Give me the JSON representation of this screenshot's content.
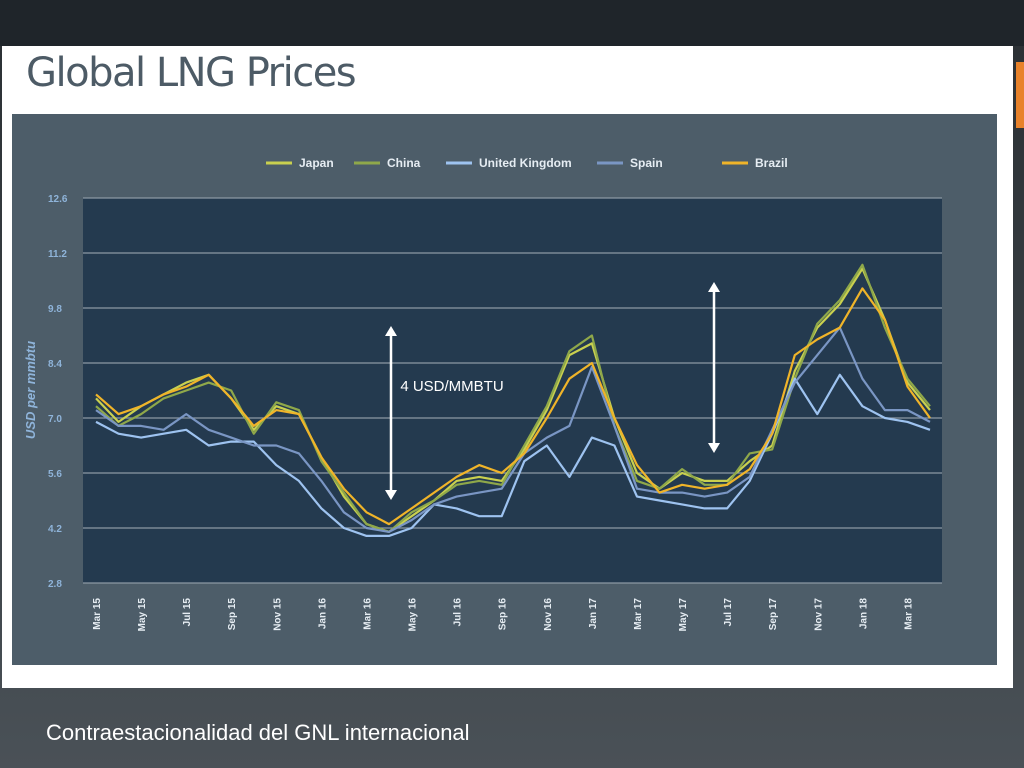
{
  "slide": {
    "title": "Global LNG Prices",
    "caption": "Contraestacionalidad del GNL internacional",
    "annotation": "4 USD/MMBTU"
  },
  "colors": {
    "Japan": "#c9d04f",
    "China": "#8fa84a",
    "United Kingdom": "#9ec3f0",
    "Spain": "#7a96c4",
    "Brazil": "#f0b429",
    "plot_bg": "#243a4f",
    "frame_bg": "#4d5d69",
    "tick_text": "#8fb4da"
  },
  "chart_data": {
    "type": "line",
    "ylabel": "USD per mmbtu",
    "ylim": [
      2.8,
      12.6
    ],
    "yticks": [
      "12.6",
      "11.2",
      "9.8",
      "8.4",
      "7.0",
      "5.6",
      "4.2",
      "2.8"
    ],
    "grid": true,
    "legend_position": "top",
    "x_tick_labels": [
      "Mar 15",
      "May 15",
      "Jul 15",
      "Sep 15",
      "Nov 15",
      "Jan 16",
      "Mar 16",
      "May 16",
      "Jul 16",
      "Sep 16",
      "Nov 16",
      "Jan 17",
      "Mar 17",
      "May 17",
      "Jul 17",
      "Sep 17",
      "Nov 17",
      "Jan 18",
      "Mar 18"
    ],
    "x": [
      "Mar 15",
      "Apr 15",
      "May 15",
      "Jun 15",
      "Jul 15",
      "Aug 15",
      "Sep 15",
      "Oct 15",
      "Nov 15",
      "Dec 15",
      "Jan 16",
      "Feb 16",
      "Mar 16",
      "Apr 16",
      "May 16",
      "Jun 16",
      "Jul 16",
      "Aug 16",
      "Sep 16",
      "Oct 16",
      "Nov 16",
      "Dec 16",
      "Jan 17",
      "Feb 17",
      "Mar 17",
      "Apr 17",
      "May 17",
      "Jun 17",
      "Jul 17",
      "Aug 17",
      "Sep 17",
      "Oct 17",
      "Nov 17",
      "Dec 17",
      "Jan 18",
      "Feb 18",
      "Mar 18",
      "Apr 18"
    ],
    "series": [
      {
        "name": "Japan",
        "values": [
          7.5,
          6.9,
          7.3,
          7.6,
          7.9,
          8.1,
          7.5,
          6.7,
          7.3,
          7.1,
          6.0,
          5.0,
          4.3,
          4.1,
          4.5,
          4.9,
          5.4,
          5.5,
          5.4,
          6.2,
          7.2,
          8.6,
          8.9,
          7.0,
          5.6,
          5.2,
          5.6,
          5.4,
          5.4,
          5.9,
          6.3,
          8.2,
          9.3,
          9.9,
          10.8,
          9.5,
          7.9,
          7.2
        ]
      },
      {
        "name": "China",
        "values": [
          7.3,
          6.8,
          7.1,
          7.5,
          7.7,
          7.9,
          7.7,
          6.6,
          7.4,
          7.2,
          5.9,
          5.1,
          4.3,
          4.1,
          4.6,
          4.9,
          5.3,
          5.4,
          5.3,
          6.3,
          7.3,
          8.7,
          9.1,
          6.8,
          5.4,
          5.2,
          5.7,
          5.3,
          5.3,
          6.1,
          6.2,
          8.0,
          9.4,
          10.0,
          10.9,
          9.3,
          8.0,
          7.3
        ]
      },
      {
        "name": "United Kingdom",
        "values": [
          6.9,
          6.6,
          6.5,
          6.6,
          6.7,
          6.3,
          6.4,
          6.4,
          5.8,
          5.4,
          4.7,
          4.2,
          4.0,
          4.0,
          4.2,
          4.8,
          4.7,
          4.5,
          4.5,
          5.9,
          6.3,
          5.5,
          6.5,
          6.3,
          5.0,
          4.9,
          4.8,
          4.7,
          4.7,
          5.4,
          6.6,
          8.0,
          7.1,
          8.1,
          7.3,
          7.0,
          6.9,
          6.7
        ]
      },
      {
        "name": "Spain",
        "values": [
          7.2,
          6.8,
          6.8,
          6.7,
          7.1,
          6.7,
          6.5,
          6.3,
          6.3,
          6.1,
          5.4,
          4.6,
          4.2,
          4.1,
          4.4,
          4.8,
          5.0,
          5.1,
          5.2,
          6.1,
          6.5,
          6.8,
          8.3,
          6.8,
          5.2,
          5.1,
          5.1,
          5.0,
          5.1,
          5.5,
          6.7,
          7.9,
          8.6,
          9.3,
          8.0,
          7.2,
          7.2,
          6.9
        ]
      },
      {
        "name": "Brazil",
        "values": [
          7.6,
          7.1,
          7.3,
          7.6,
          7.8,
          8.1,
          7.5,
          6.8,
          7.2,
          7.1,
          6.0,
          5.2,
          4.6,
          4.3,
          4.7,
          5.1,
          5.5,
          5.8,
          5.6,
          6.1,
          7.0,
          8.0,
          8.4,
          7.0,
          5.8,
          5.1,
          5.3,
          5.2,
          5.3,
          5.7,
          6.6,
          8.6,
          9.0,
          9.3,
          10.3,
          9.5,
          7.8,
          7.0
        ]
      }
    ]
  }
}
